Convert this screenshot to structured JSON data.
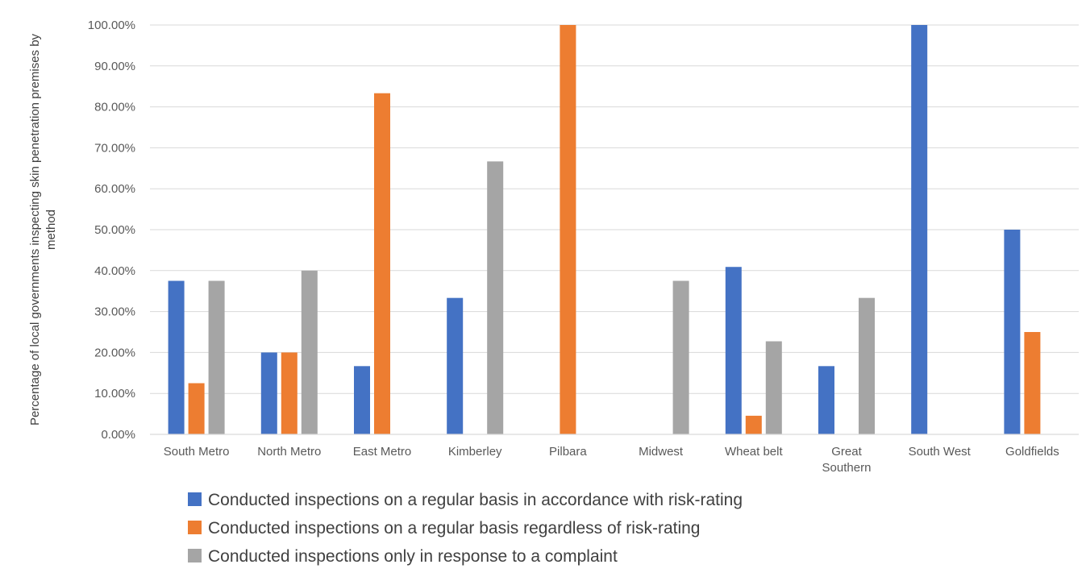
{
  "chart_data": {
    "type": "bar",
    "title": "",
    "ylabel_lines": [
      "Percentage of local governments inspecting skin penetration premises by",
      "method"
    ],
    "xlabel": "",
    "ylim": [
      0,
      100
    ],
    "y_ticks": [
      0,
      10,
      20,
      30,
      40,
      50,
      60,
      70,
      80,
      90,
      100
    ],
    "y_tick_labels": [
      "0.00%",
      "10.00%",
      "20.00%",
      "30.00%",
      "40.00%",
      "50.00%",
      "60.00%",
      "70.00%",
      "80.00%",
      "90.00%",
      "100.00%"
    ],
    "grid": true,
    "legend_position": "bottom",
    "categories": [
      [
        "South Metro"
      ],
      [
        "North Metro"
      ],
      [
        "East Metro"
      ],
      [
        "Kimberley"
      ],
      [
        "Pilbara"
      ],
      [
        "Midwest"
      ],
      [
        "Wheat belt"
      ],
      [
        "Great",
        "Southern"
      ],
      [
        "South West"
      ],
      [
        "Goldfields"
      ]
    ],
    "series": [
      {
        "name": "Conducted inspections on a regular basis in accordance with risk-rating",
        "color": "#4472C4",
        "values": [
          37.5,
          20,
          16.67,
          33.33,
          0,
          0,
          40.9,
          16.67,
          100,
          50
        ]
      },
      {
        "name": "Conducted inspections on a regular basis regardless of risk-rating",
        "color": "#ED7D31",
        "values": [
          12.5,
          20,
          83.33,
          0,
          100,
          0,
          4.55,
          0,
          0,
          25
        ]
      },
      {
        "name": "Conducted inspections only in response to a complaint",
        "color": "#A5A5A5",
        "values": [
          37.5,
          40,
          0,
          66.67,
          0,
          37.5,
          22.73,
          33.33,
          0,
          0
        ]
      }
    ]
  }
}
